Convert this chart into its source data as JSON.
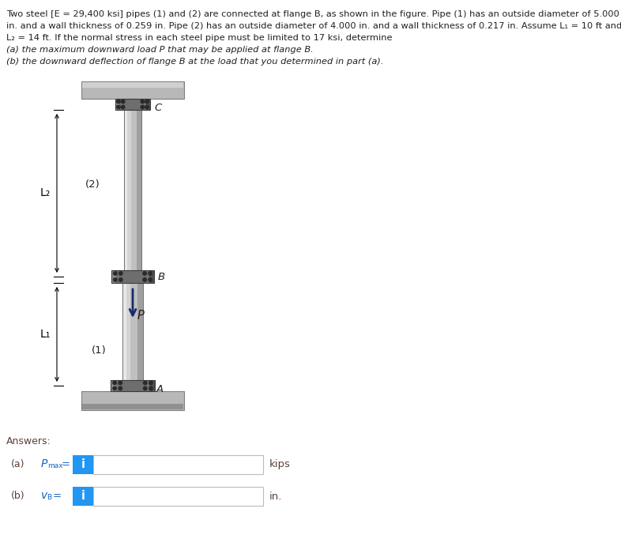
{
  "title_lines": [
    "Two steel [E = 29,400 ksi] pipes (1) and (2) are connected at flange B, as shown in the figure. Pipe (1) has an outside diameter of 5.000",
    "in. and a wall thickness of 0.259 in. Pipe (2) has an outside diameter of 4.000 in. and a wall thickness of 0.217 in. Assume L₁ = 10 ft and",
    "L₂ = 14 ft. If the normal stress in each steel pipe must be limited to 17 ksi, determine"
  ],
  "sub_a": "(a) the maximum downward load P that may be applied at flange B.",
  "sub_b": "(b) the downward deflection of flange B at the load that you determined in part (a).",
  "answers_label": "Answers:",
  "unit_a": "kips",
  "unit_b": "in.",
  "bg_color": "#ffffff",
  "text_color": "#231f20",
  "italic_color": "#231f20",
  "blue_btn": "#2196F3",
  "input_border": "#bbbbbb",
  "pipe_highlight": "#e0e0e0",
  "pipe_mid": "#c0c0c0",
  "pipe_shadow": "#909090",
  "pipe_edge": "#707070",
  "flange_face": "#6a6a6a",
  "flange_edge": "#3a3a3a",
  "plate_top": "#aaaaaa",
  "plate_face": "#c8c8c8",
  "plate_edge": "#808080",
  "bolt_color": "#2a2a2a",
  "arrow_color": "#1a2a6e",
  "dim_color": "#000000",
  "label_color": "#231f20",
  "ans_label_color": "#5d4037",
  "ans_var_color": "#1565C0"
}
